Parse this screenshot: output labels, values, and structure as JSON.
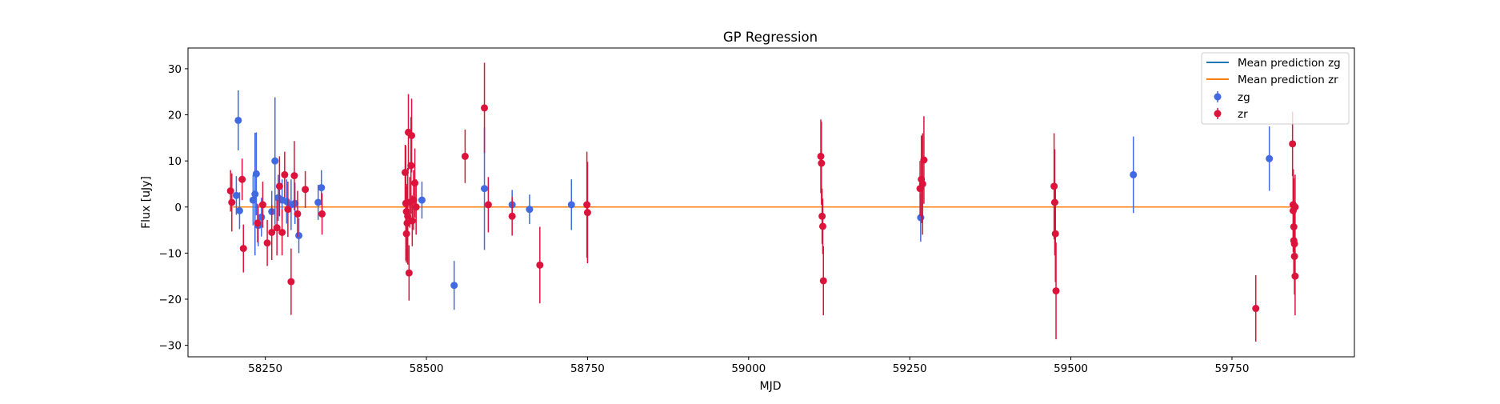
{
  "chart_data": {
    "type": "scatter",
    "title": "GP Regression",
    "xlabel": "MJD",
    "ylabel": "Flux [uJy]",
    "xlim": [
      58130,
      59940
    ],
    "ylim": [
      -32.5,
      34.5
    ],
    "x_ticks": [
      58250,
      58500,
      58750,
      59000,
      59250,
      59500,
      59750
    ],
    "x_tick_labels": [
      "58250",
      "58500",
      "58750",
      "59000",
      "59250",
      "59500",
      "59750"
    ],
    "y_ticks": [
      -30,
      -20,
      -10,
      0,
      10,
      20,
      30
    ],
    "y_tick_labels": [
      "−30",
      "−20",
      "−10",
      "0",
      "10",
      "20",
      "30"
    ],
    "grid": false,
    "legend_position": "top-right",
    "legend": [
      "Mean prediction zg",
      "Mean prediction zr",
      "zg",
      "zr"
    ],
    "lines": [
      {
        "name": "Mean prediction zg",
        "color": "#1f77b4",
        "x": [
          58200,
          59845
        ],
        "y": [
          0,
          0
        ]
      },
      {
        "name": "Mean prediction zr",
        "color": "#ff7f0e",
        "x": [
          58200,
          59845
        ],
        "y": [
          0,
          0
        ]
      }
    ],
    "series": [
      {
        "name": "zg",
        "color": "#4169e1",
        "points": [
          {
            "x": 58205,
            "y": 2.5,
            "err": 4.2
          },
          {
            "x": 58208,
            "y": 18.8,
            "err": 6.5
          },
          {
            "x": 58210,
            "y": -0.8,
            "err": 4.0
          },
          {
            "x": 58231,
            "y": 1.5,
            "err": 5.5
          },
          {
            "x": 58234,
            "y": 2.8,
            "err": 13.3
          },
          {
            "x": 58236,
            "y": 7.2,
            "err": 9.0
          },
          {
            "x": 58239,
            "y": -4.0,
            "err": 4.5
          },
          {
            "x": 58244,
            "y": -2.2,
            "err": 4.2
          },
          {
            "x": 58260,
            "y": -1.0,
            "err": 4.5
          },
          {
            "x": 58265,
            "y": 10.0,
            "err": 13.8
          },
          {
            "x": 58270,
            "y": 2.0,
            "err": 5.0
          },
          {
            "x": 58276,
            "y": 1.5,
            "err": 4.5
          },
          {
            "x": 58283,
            "y": 1.2,
            "err": 4.8
          },
          {
            "x": 58290,
            "y": 0.5,
            "err": 5.5
          },
          {
            "x": 58296,
            "y": 0.8,
            "err": 4.5
          },
          {
            "x": 58302,
            "y": -6.2,
            "err": 3.8
          },
          {
            "x": 58332,
            "y": 1.0,
            "err": 3.8
          },
          {
            "x": 58337,
            "y": 4.2,
            "err": 3.8
          },
          {
            "x": 58493,
            "y": 1.5,
            "err": 4.0
          },
          {
            "x": 58543,
            "y": -17.0,
            "err": 5.3
          },
          {
            "x": 58590,
            "y": 4.0,
            "err": 13.3
          },
          {
            "x": 58633,
            "y": 0.5,
            "err": 3.2
          },
          {
            "x": 58660,
            "y": -0.5,
            "err": 3.2
          },
          {
            "x": 58725,
            "y": 0.5,
            "err": 5.5
          },
          {
            "x": 59267,
            "y": -2.3,
            "err": 5.2
          },
          {
            "x": 59597,
            "y": 7.0,
            "err": 8.3
          },
          {
            "x": 59808,
            "y": 10.5,
            "err": 7.0
          }
        ]
      },
      {
        "name": "zr",
        "color": "#dc143c",
        "points": [
          {
            "x": 58196,
            "y": 3.5,
            "err": 4.5
          },
          {
            "x": 58198,
            "y": 1.0,
            "err": 6.3
          },
          {
            "x": 58214,
            "y": 6.0,
            "err": 4.5
          },
          {
            "x": 58216,
            "y": -9.0,
            "err": 5.2
          },
          {
            "x": 58238,
            "y": -3.5,
            "err": 4.2
          },
          {
            "x": 58246,
            "y": 0.5,
            "err": 5.0
          },
          {
            "x": 58253,
            "y": -7.8,
            "err": 5.0
          },
          {
            "x": 58260,
            "y": -5.5,
            "err": 6.0
          },
          {
            "x": 58268,
            "y": -4.5,
            "err": 6.0
          },
          {
            "x": 58272,
            "y": 4.5,
            "err": 6.5
          },
          {
            "x": 58276,
            "y": -5.5,
            "err": 5.0
          },
          {
            "x": 58280,
            "y": 7.0,
            "err": 5.0
          },
          {
            "x": 58285,
            "y": -0.5,
            "err": 6.0
          },
          {
            "x": 58290,
            "y": -16.2,
            "err": 7.2
          },
          {
            "x": 58295,
            "y": 6.8,
            "err": 7.5
          },
          {
            "x": 58300,
            "y": -1.5,
            "err": 5.0
          },
          {
            "x": 58312,
            "y": 3.8,
            "err": 4.0
          },
          {
            "x": 58338,
            "y": -1.5,
            "err": 4.5
          },
          {
            "x": 58467,
            "y": 7.5,
            "err": 6.0
          },
          {
            "x": 58468,
            "y": 0.8,
            "err": 12.5
          },
          {
            "x": 58469,
            "y": -1.0,
            "err": 6.0
          },
          {
            "x": 58469,
            "y": -5.8,
            "err": 6.3
          },
          {
            "x": 58470,
            "y": -3.5,
            "err": 8.0
          },
          {
            "x": 58471,
            "y": -2.0,
            "err": 10.5
          },
          {
            "x": 58472,
            "y": 16.2,
            "err": 8.3
          },
          {
            "x": 58473,
            "y": -14.3,
            "err": 6.0
          },
          {
            "x": 58474,
            "y": 1.0,
            "err": 5.5
          },
          {
            "x": 58476,
            "y": 9.0,
            "err": 10.5
          },
          {
            "x": 58477,
            "y": 15.5,
            "err": 8.0
          },
          {
            "x": 58478,
            "y": -3.0,
            "err": 5.5
          },
          {
            "x": 58480,
            "y": 1.5,
            "err": 6.5
          },
          {
            "x": 58482,
            "y": 5.2,
            "err": 7.5
          },
          {
            "x": 58484,
            "y": 0.0,
            "err": 6.0
          },
          {
            "x": 58560,
            "y": 11.0,
            "err": 5.8
          },
          {
            "x": 58590,
            "y": 21.5,
            "err": 9.8
          },
          {
            "x": 58596,
            "y": 0.5,
            "err": 6.0
          },
          {
            "x": 58633,
            "y": -2.0,
            "err": 4.2
          },
          {
            "x": 58676,
            "y": -12.6,
            "err": 8.3
          },
          {
            "x": 58749,
            "y": 0.5,
            "err": 11.5
          },
          {
            "x": 58750,
            "y": -1.2,
            "err": 11.0
          },
          {
            "x": 59112,
            "y": 11.0,
            "err": 8.0
          },
          {
            "x": 59113,
            "y": 9.5,
            "err": 9.0
          },
          {
            "x": 59114,
            "y": -2.0,
            "err": 6.0
          },
          {
            "x": 59115,
            "y": -4.2,
            "err": 6.0
          },
          {
            "x": 59116,
            "y": -16.0,
            "err": 7.5
          },
          {
            "x": 59266,
            "y": 4.0,
            "err": 6.0
          },
          {
            "x": 59268,
            "y": 6.0,
            "err": 9.5
          },
          {
            "x": 59270,
            "y": 5.0,
            "err": 11.0
          },
          {
            "x": 59272,
            "y": 10.2,
            "err": 9.5
          },
          {
            "x": 59474,
            "y": 4.5,
            "err": 11.5
          },
          {
            "x": 59475,
            "y": 1.0,
            "err": 11.5
          },
          {
            "x": 59476,
            "y": -5.8,
            "err": 10.5
          },
          {
            "x": 59477,
            "y": -18.2,
            "err": 10.5
          },
          {
            "x": 59787,
            "y": -22.0,
            "err": 7.2
          },
          {
            "x": 59844,
            "y": 13.7,
            "err": 7.0
          },
          {
            "x": 59845,
            "y": 0.5,
            "err": 7.5
          },
          {
            "x": 59845,
            "y": -0.8,
            "err": 9.0
          },
          {
            "x": 59846,
            "y": -4.3,
            "err": 10.5
          },
          {
            "x": 59846,
            "y": -7.3,
            "err": 8.3
          },
          {
            "x": 59847,
            "y": -8.0,
            "err": 7.5
          },
          {
            "x": 59847,
            "y": -10.7,
            "err": 8.3
          },
          {
            "x": 59848,
            "y": -15.0,
            "err": 8.5
          },
          {
            "x": 59848,
            "y": 0.0,
            "err": 7.0
          }
        ]
      }
    ]
  }
}
